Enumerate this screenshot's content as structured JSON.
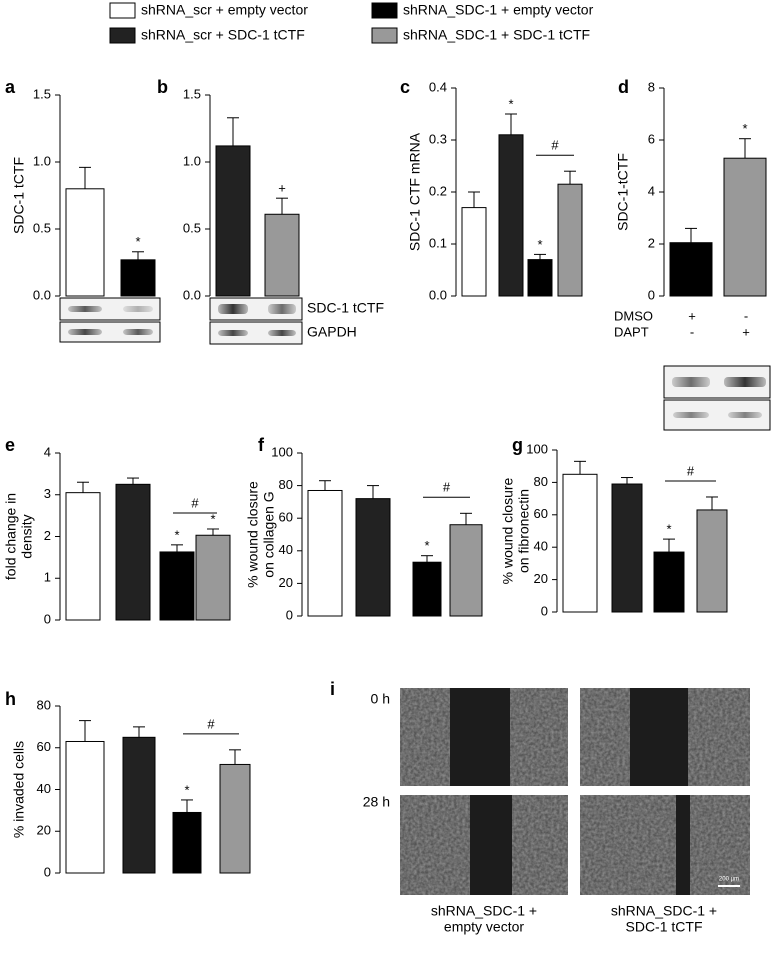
{
  "legend": [
    {
      "name": "shRNA_scr + empty vector",
      "color": "#ffffff"
    },
    {
      "name": "shRNA_SDC-1 + empty vector",
      "color": "#000000"
    },
    {
      "name": "shRNA_scr + SDC-1 tCTF",
      "color": "#222222"
    },
    {
      "name": "shRNA_SDC-1 + SDC-1 tCTF",
      "color": "#999999"
    }
  ],
  "chart_data": [
    {
      "type": "bar",
      "panel": "a",
      "ylabel": [
        "SDC-1 tCTF"
      ],
      "values": [
        0.8,
        0.27
      ],
      "errors": [
        0.16,
        0.06
      ],
      "colors": [
        "#ffffff",
        "#000000"
      ],
      "annotations": [
        null,
        "*"
      ],
      "ylim": [
        0,
        1.5
      ],
      "yticks": [
        {
          "value": 0,
          "label": "0.0"
        },
        {
          "value": 0.5,
          "label": "0.5"
        },
        {
          "value": 1,
          "label": "1.0"
        },
        {
          "value": 1.5,
          "label": "1.5"
        }
      ]
    },
    {
      "type": "bar",
      "panel": "b",
      "values": [
        1.12,
        0.61
      ],
      "errors": [
        0.21,
        0.12
      ],
      "colors": [
        "#222222",
        "#999999"
      ],
      "annotations": [
        null,
        "+"
      ],
      "blot_labels": [
        "SDC-1 tCTF",
        "GAPDH"
      ],
      "ylim": [
        0,
        1.5
      ],
      "yticks": [
        {
          "value": 0,
          "label": "0.0"
        },
        {
          "value": 0.5,
          "label": "0.5"
        },
        {
          "value": 1,
          "label": "1.0"
        },
        {
          "value": 1.5,
          "label": "1.5"
        }
      ]
    },
    {
      "type": "bar",
      "panel": "c",
      "ylabel": [
        "SDC-1 CTF mRNA"
      ],
      "values": [
        0.17,
        0.31,
        0.07,
        0.215
      ],
      "errors": [
        0.03,
        0.04,
        0.01,
        0.025
      ],
      "colors": [
        "#ffffff",
        "#222222",
        "#000000",
        "#999999"
      ],
      "annotations": [
        null,
        "*",
        "*",
        null
      ],
      "bracket_label": "#",
      "ylim": [
        0,
        0.4
      ],
      "yticks": [
        {
          "value": 0,
          "label": "0.0"
        },
        0.1,
        0.2,
        0.3,
        0.4
      ]
    },
    {
      "type": "bar",
      "panel": "d",
      "ylabel": [
        "SDC-1-tCTF"
      ],
      "values": [
        2.05,
        5.3
      ],
      "errors": [
        0.55,
        0.75
      ],
      "colors": [
        "#000000",
        "#999999"
      ],
      "annotations": [
        null,
        "*"
      ],
      "treatments": [
        {
          "name": "DMSO",
          "marks": [
            "+",
            "-"
          ]
        },
        {
          "name": "DAPT",
          "marks": [
            "-",
            "+"
          ]
        }
      ],
      "ylim": [
        0,
        8
      ],
      "yticks": [
        0,
        2,
        4,
        6,
        8
      ]
    },
    {
      "type": "bar",
      "panel": "e",
      "ylabel": [
        "fold change in",
        "density"
      ],
      "values": [
        3.05,
        3.25,
        1.63,
        2.03
      ],
      "errors": [
        0.25,
        0.15,
        0.17,
        0.15
      ],
      "colors": [
        "#ffffff",
        "#222222",
        "#000000",
        "#999999"
      ],
      "annotations": [
        null,
        null,
        "*",
        "*"
      ],
      "bracket_label": "#",
      "ylim": [
        0,
        4
      ],
      "yticks": [
        0,
        1,
        2,
        3,
        4
      ]
    },
    {
      "type": "bar",
      "panel": "f",
      "ylabel": [
        "% wound closure",
        "on collagen G"
      ],
      "values": [
        77,
        72,
        33,
        56
      ],
      "errors": [
        6,
        8,
        4,
        7
      ],
      "colors": [
        "#ffffff",
        "#222222",
        "#000000",
        "#999999"
      ],
      "annotations": [
        null,
        null,
        "*",
        null
      ],
      "bracket_label": "#",
      "ylim": [
        0,
        100
      ],
      "yticks": [
        0,
        20,
        40,
        60,
        80,
        100
      ]
    },
    {
      "type": "bar",
      "panel": "g",
      "ylabel": [
        "% wound closure",
        "on fibronectin"
      ],
      "values": [
        85,
        79,
        37,
        63
      ],
      "errors": [
        8,
        4,
        8,
        8
      ],
      "colors": [
        "#ffffff",
        "#222222",
        "#000000",
        "#999999"
      ],
      "annotations": [
        null,
        null,
        "*",
        null
      ],
      "bracket_label": "#",
      "ylim": [
        0,
        100
      ],
      "yticks": [
        0,
        20,
        40,
        60,
        80,
        100
      ]
    },
    {
      "type": "bar",
      "panel": "h",
      "ylabel": [
        "% invaded cells"
      ],
      "values": [
        63,
        65,
        29,
        52
      ],
      "errors": [
        10,
        5,
        6,
        7
      ],
      "colors": [
        "#ffffff",
        "#222222",
        "#000000",
        "#999999"
      ],
      "annotations": [
        null,
        null,
        "*",
        null
      ],
      "bracket_label": "#",
      "ylim": [
        0,
        80
      ],
      "yticks": [
        0,
        20,
        40,
        60,
        80
      ]
    }
  ],
  "image_panel": {
    "panel": "i",
    "rows": [
      "0 h",
      "28 h"
    ],
    "columns": [
      [
        "shRNA_SDC-1 +",
        "empty vector"
      ],
      [
        "shRNA_SDC-1 +",
        "SDC-1 tCTF"
      ]
    ],
    "scale_bar": "200 µm"
  }
}
